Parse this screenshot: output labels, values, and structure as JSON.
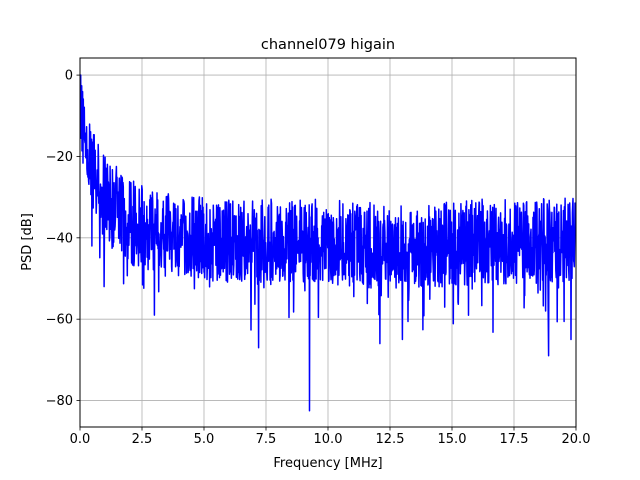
{
  "chart_data": {
    "type": "line",
    "title": "channel079 higain",
    "xlabel": "Frequency [MHz]",
    "ylabel": "PSD [dB]",
    "xlim": [
      0,
      20
    ],
    "ylim": [
      -86.5,
      4.2
    ],
    "x_ticks": [
      0,
      2.5,
      5,
      7.5,
      10,
      12.5,
      15,
      17.5,
      20
    ],
    "x_tick_labels": [
      "0.0",
      "2.5",
      "5.0",
      "7.5",
      "10.0",
      "12.5",
      "15.0",
      "17.5",
      "20.0"
    ],
    "y_ticks": [
      0,
      -20,
      -40,
      -60,
      -80
    ],
    "y_tick_labels": [
      "0",
      "−20",
      "−40",
      "−60",
      "−80"
    ],
    "grid": true,
    "series": [
      {
        "color": "#0000ff",
        "x": [
          0,
          0.05,
          0.1,
          0.15,
          0.2,
          0.3,
          0.4,
          0.5,
          0.7,
          1.0,
          1.5,
          2.0,
          3.0,
          4.0,
          6.0,
          8.0,
          10.0,
          12.0,
          14.0,
          16.0,
          18.0,
          20.0
        ],
        "center_db": [
          0,
          -4,
          -8,
          -11,
          -14,
          -18,
          -21,
          -24,
          -27,
          -30,
          -33,
          -36,
          -39,
          -40,
          -41,
          -41,
          -41,
          -42,
          -42,
          -41,
          -41,
          -40
        ],
        "points_per_mhz": 75,
        "notable_dips": [
          {
            "x": 0.48,
            "y": -42
          },
          {
            "x": 0.98,
            "y": -52
          },
          {
            "x": 3.0,
            "y": -59
          },
          {
            "x": 7.2,
            "y": -67
          },
          {
            "x": 9.25,
            "y": -82.5
          },
          {
            "x": 12.1,
            "y": -66
          },
          {
            "x": 13.0,
            "y": -65
          },
          {
            "x": 18.9,
            "y": -69
          },
          {
            "x": 19.8,
            "y": -65
          }
        ]
      }
    ]
  }
}
